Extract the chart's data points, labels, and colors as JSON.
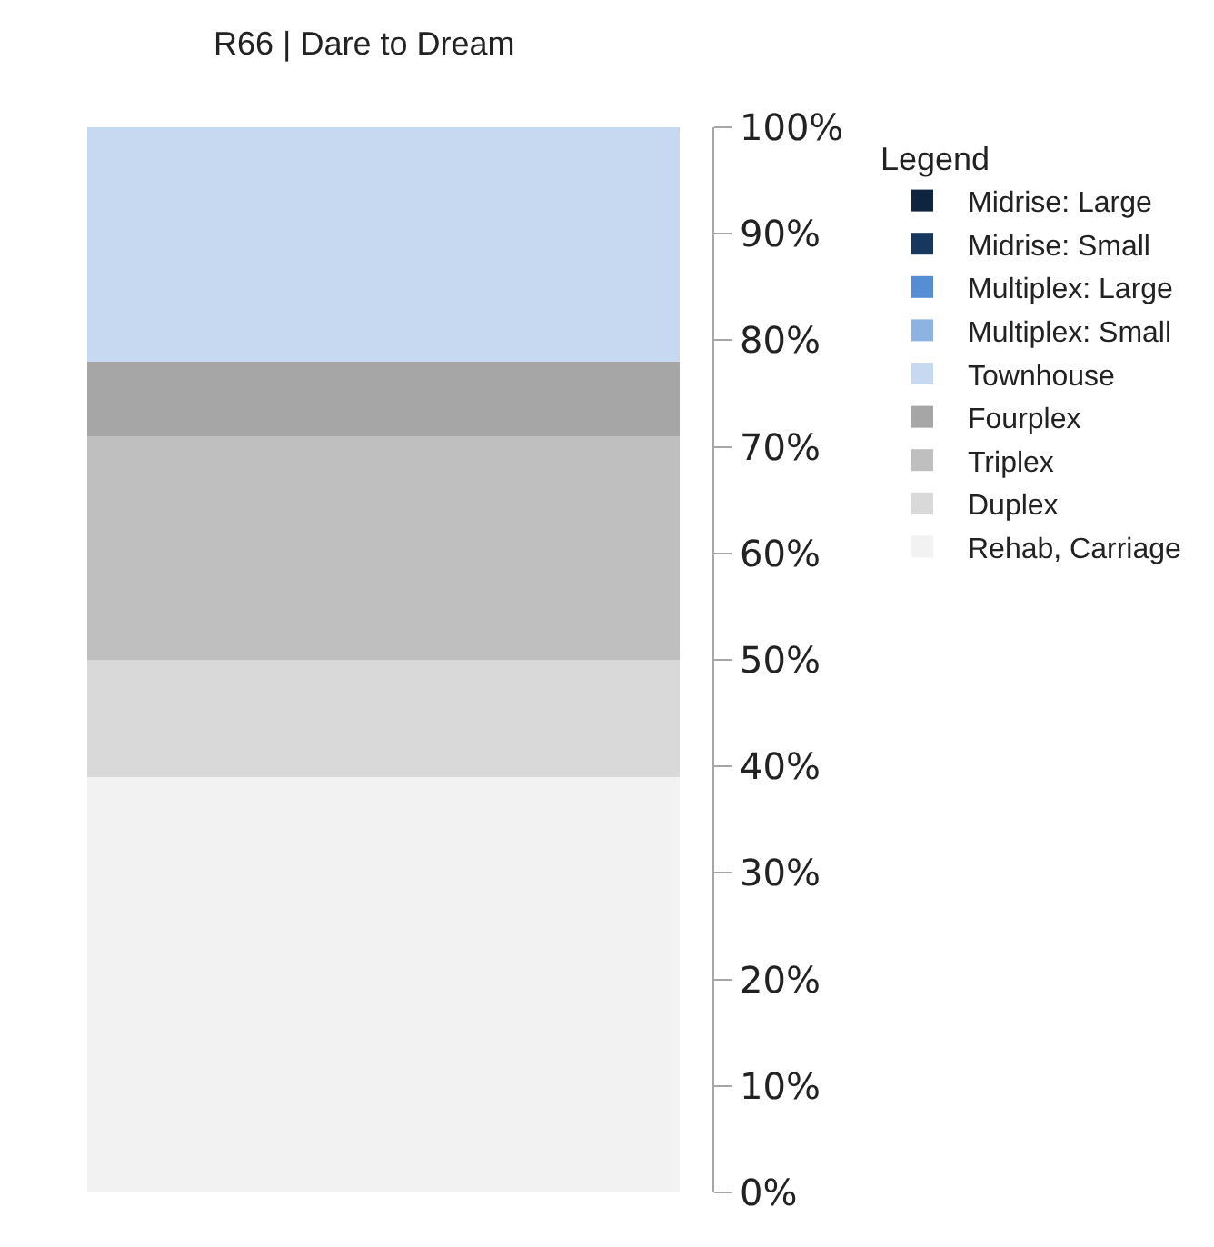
{
  "chart_data": {
    "type": "bar",
    "title": "R66 | Dare to Dream",
    "legend_title": "Legend",
    "stacked": true,
    "categories": [
      null
    ],
    "series": [
      {
        "name": "Rehab, Carriage",
        "color": "#f2f2f2",
        "values": [
          39
        ]
      },
      {
        "name": "Duplex",
        "color": "#d9d9d9",
        "values": [
          11
        ]
      },
      {
        "name": "Triplex",
        "color": "#bfbfbf",
        "values": [
          21
        ]
      },
      {
        "name": "Fourplex",
        "color": "#a6a6a6",
        "values": [
          7
        ]
      },
      {
        "name": "Townhouse",
        "color": "#c6d9f1",
        "values": [
          22
        ]
      },
      {
        "name": "Multiplex: Small",
        "color": "#8db3e2",
        "values": [
          0
        ]
      },
      {
        "name": "Multiplex: Large",
        "color": "#558ed5",
        "values": [
          0
        ]
      },
      {
        "name": "Midrise: Small",
        "color": "#17375e",
        "values": [
          0
        ]
      },
      {
        "name": "Midrise: Large",
        "color": "#0f243e",
        "values": [
          0
        ]
      }
    ],
    "ylim": [
      0,
      100
    ],
    "yticks": [
      {
        "value": 0,
        "label": "0%"
      },
      {
        "value": 10,
        "label": "10%"
      },
      {
        "value": 20,
        "label": "20%"
      },
      {
        "value": 30,
        "label": "30%"
      },
      {
        "value": 40,
        "label": "40%"
      },
      {
        "value": 50,
        "label": "50%"
      },
      {
        "value": 60,
        "label": "60%"
      },
      {
        "value": 70,
        "label": "70%"
      },
      {
        "value": 80,
        "label": "80%"
      },
      {
        "value": 90,
        "label": "90%"
      },
      {
        "value": 100,
        "label": "100%"
      }
    ],
    "grid": false,
    "legend": "right"
  }
}
